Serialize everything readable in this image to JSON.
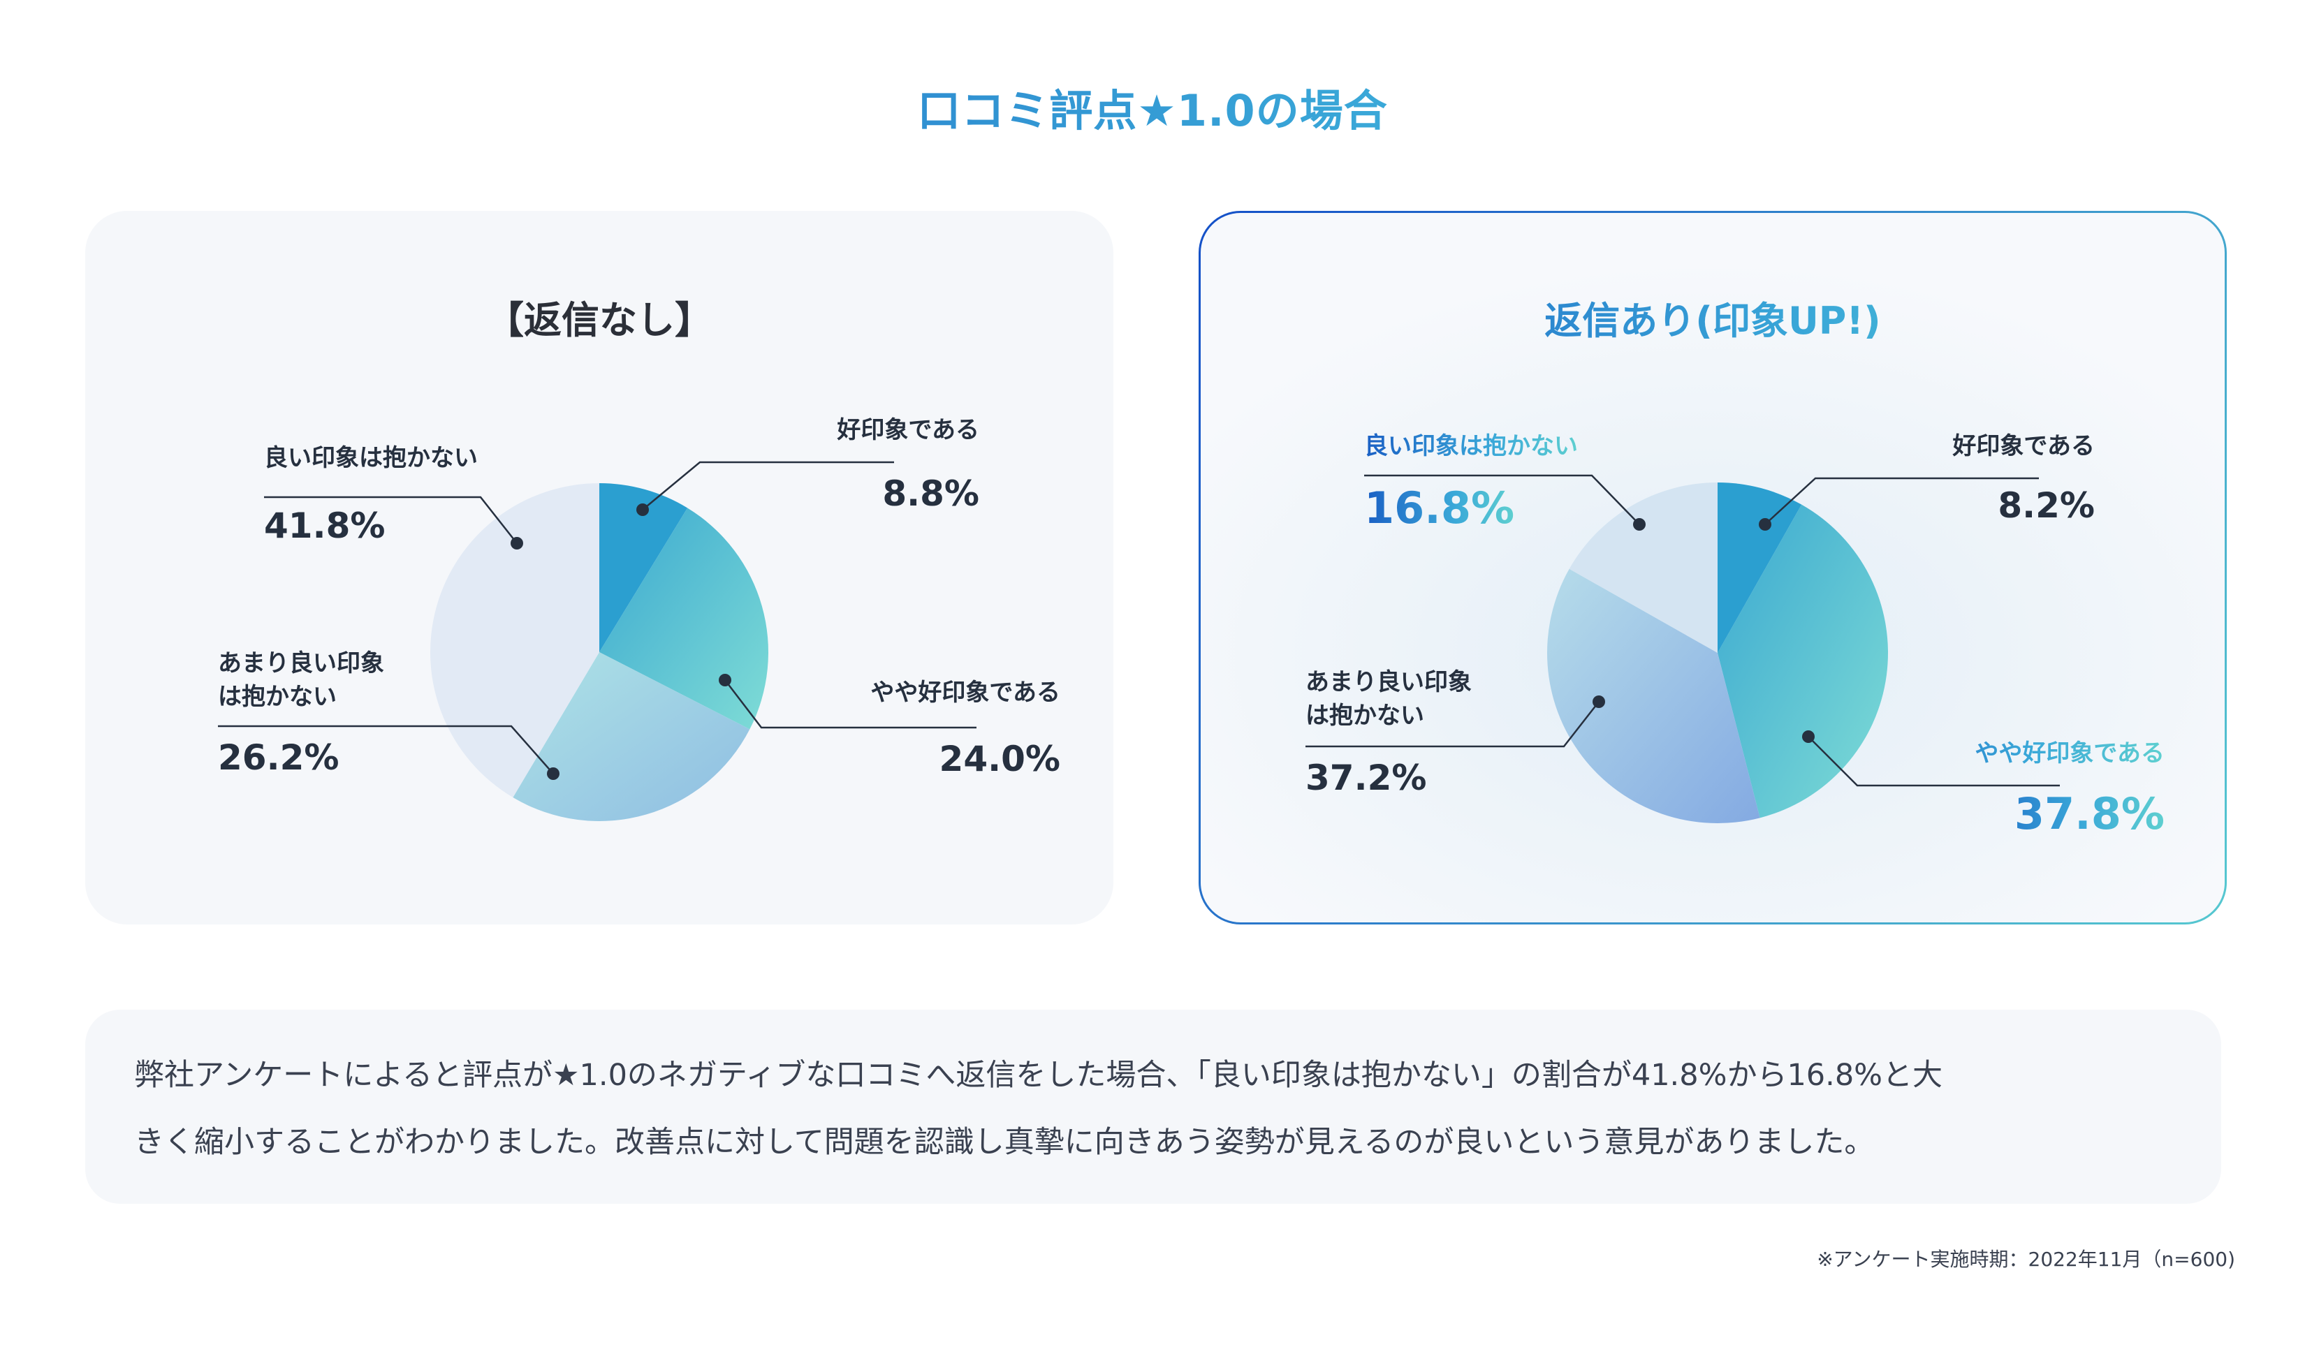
{
  "title": "口コミ評点★1.0の場合",
  "colors": {
    "title_start": "#1a5fc4",
    "title_end": "#5ecfd0",
    "dark_text": "#26303f",
    "panel_bg": "#f5f7fa"
  },
  "chart_data": [
    {
      "type": "pie",
      "title": "【返信なし】",
      "categories": [
        "好印象である",
        "やや好印象である",
        "あまり良い印象は抱かない",
        "良い印象は抱かない"
      ],
      "values": [
        8.8,
        24.0,
        26.2,
        41.8
      ],
      "value_labels": [
        "8.8%",
        "24.0%",
        "26.2%",
        "41.8%"
      ],
      "slice_colors": [
        [
          "#2b9fd0",
          "#2b9fd0"
        ],
        [
          "#3aa8d0",
          "#7fdcd6"
        ],
        [
          "#aee3e6",
          "#8fbde2"
        ],
        [
          "#e2eaf5",
          "#e2eaf5"
        ]
      ]
    },
    {
      "type": "pie",
      "title": "返信あり(印象UP!)",
      "categories": [
        "好印象である",
        "やや好印象である",
        "あまり良い印象は抱かない",
        "良い印象は抱かない"
      ],
      "values": [
        8.2,
        37.8,
        37.2,
        16.8
      ],
      "value_labels": [
        "8.2%",
        "37.8%",
        "37.2%",
        "16.8%"
      ],
      "slice_colors": [
        [
          "#2b9fd0",
          "#2b9fd0"
        ],
        [
          "#3aa8d0",
          "#7fdcd6"
        ],
        [
          "#b6dcea",
          "#84aae2"
        ],
        [
          "#d4e4f2",
          "#d4e4f2"
        ]
      ]
    }
  ],
  "left_chart_labels": {
    "good": "好印象である",
    "good_value": "8.8%",
    "somewhat_good": "やや好印象である",
    "somewhat_good_value": "24.0%",
    "not_very_good": "あまり良い印象\nは抱かない",
    "not_very_good_value": "26.2%",
    "not_good": "良い印象は抱かない",
    "not_good_value": "41.8%"
  },
  "right_chart_labels": {
    "good": "好印象である",
    "good_value": "8.2%",
    "somewhat_good": "やや好印象である",
    "somewhat_good_value": "37.8%",
    "not_very_good": "あまり良い印象\nは抱かない",
    "not_very_good_value": "37.2%",
    "not_good": "良い印象は抱かない",
    "not_good_value": "16.8%"
  },
  "summary": {
    "line1": "弊社アンケートによると評点が★1.0のネガティブな口コミへ返信をした場合、「良い印象は抱かない」の割合が41.8%から16.8%と大",
    "line2": "きく縮小することがわかりました。改善点に対して問題を認識し真摯に向きあう姿勢が見えるのが良いという意見がありました。"
  },
  "footnote": "※アンケート実施時期：2022年11月（n=600)"
}
